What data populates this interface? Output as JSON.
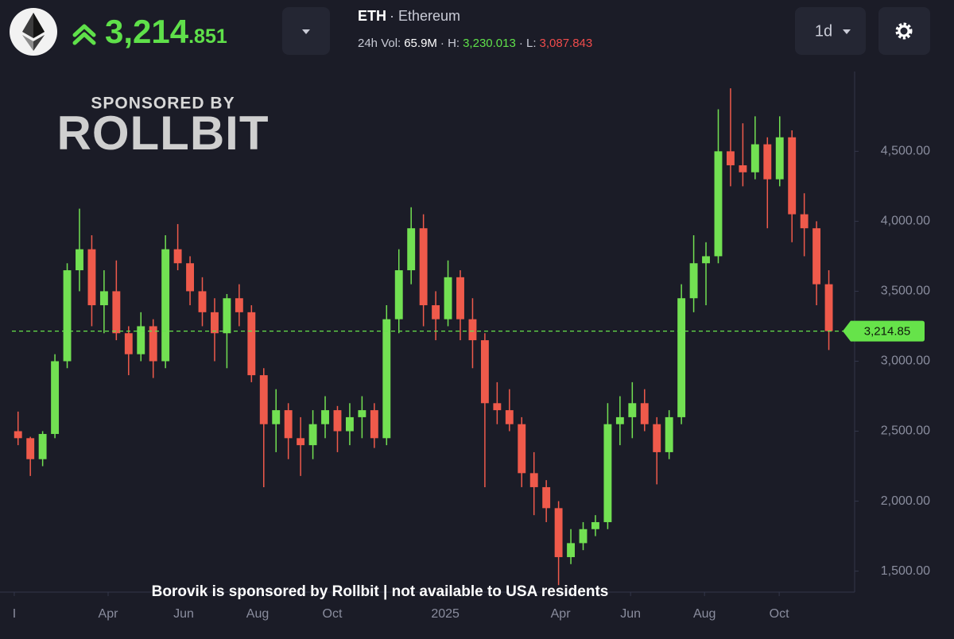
{
  "header": {
    "symbol": "ETH",
    "name": "· Ethereum",
    "price_main": "3,214",
    "price_decimals": ".851",
    "vol_label": "24h Vol:",
    "vol": "65.9M",
    "high_label": "· H:",
    "high": "3,230.013",
    "low_label": "· L:",
    "low": "3,087.843",
    "interval": "1d"
  },
  "sponsor": {
    "label": "SPONSORED BY",
    "brand": "ROLLBIT"
  },
  "footer": "Borovik is sponsored by Rollbit | not available to USA residents",
  "chart_data": {
    "type": "candlestick",
    "up_color": "#72e052",
    "down_color": "#ef5a4b",
    "open": [
      2500,
      2450,
      2300,
      2480,
      3000,
      3650,
      3800,
      3400,
      3500,
      3200,
      3050,
      3250,
      3000,
      3800,
      3700,
      3500,
      3350,
      3200,
      3450,
      3350,
      2900,
      2550,
      2650,
      2450,
      2400,
      2550,
      2650,
      2500,
      2600,
      2650,
      2450,
      3300,
      3650,
      3950,
      3400,
      3300,
      3600,
      3300,
      3150,
      2700,
      2650,
      2550,
      2200,
      2100,
      1950,
      1600,
      1700,
      1800,
      1850,
      2550,
      2600,
      2700,
      2550,
      2350,
      2600,
      3450,
      3700,
      3750,
      4500,
      4400,
      4350,
      4550,
      4300,
      4600,
      4050,
      3950,
      3550
    ],
    "high": [
      2640,
      2460,
      2500,
      3050,
      3700,
      4090,
      3900,
      3650,
      3720,
      3250,
      3350,
      3300,
      3900,
      3980,
      3750,
      3600,
      3450,
      3480,
      3550,
      3400,
      2950,
      2800,
      2700,
      2600,
      2650,
      2750,
      2680,
      2700,
      2750,
      2700,
      3400,
      3800,
      4100,
      4050,
      3500,
      3720,
      3650,
      3450,
      3200,
      2850,
      2800,
      2600,
      2350,
      2150,
      2000,
      1800,
      1850,
      1900,
      2700,
      2750,
      2850,
      2800,
      2600,
      2650,
      3550,
      3900,
      3850,
      4800,
      4950,
      4700,
      4750,
      4600,
      4750,
      4650,
      4200,
      4000,
      3650
    ],
    "low": [
      2400,
      2180,
      2250,
      2450,
      2950,
      3500,
      3250,
      3200,
      3150,
      2900,
      3000,
      2880,
      2950,
      3650,
      3400,
      3250,
      3000,
      2950,
      3250,
      2850,
      2100,
      2350,
      2300,
      2180,
      2300,
      2450,
      2350,
      2400,
      2450,
      2380,
      2400,
      3200,
      3550,
      3250,
      3150,
      3250,
      3150,
      2950,
      2100,
      2550,
      2500,
      2100,
      1900,
      1850,
      1400,
      1550,
      1650,
      1750,
      1800,
      2400,
      2450,
      2500,
      2120,
      2300,
      2550,
      3350,
      3400,
      3700,
      4250,
      4250,
      4300,
      3950,
      4250,
      3850,
      3750,
      3400,
      3080
    ],
    "close": [
      2450,
      2300,
      2480,
      3000,
      3650,
      3800,
      3400,
      3500,
      3200,
      3050,
      3250,
      3000,
      3800,
      3700,
      3500,
      3350,
      3200,
      3450,
      3350,
      2900,
      2550,
      2650,
      2450,
      2400,
      2550,
      2650,
      2500,
      2600,
      2650,
      2450,
      3300,
      3650,
      3950,
      3400,
      3300,
      3600,
      3300,
      3150,
      2700,
      2650,
      2550,
      2200,
      2100,
      1950,
      1600,
      1700,
      1800,
      1850,
      2550,
      2600,
      2700,
      2550,
      2350,
      2600,
      3450,
      3700,
      3750,
      4500,
      4400,
      4350,
      4550,
      4300,
      4600,
      4050,
      3950,
      3550,
      3215
    ],
    "last_price": 3214.85,
    "last_price_label": "3,214.85",
    "last_price_color": "#66e34a",
    "xlim": [
      -0.5,
      68.1
    ],
    "xticks": [
      {
        "value": -0.31,
        "label": "I"
      },
      {
        "value": 7.33,
        "label": "Apr"
      },
      {
        "value": 13.48,
        "label": "Jun"
      },
      {
        "value": 19.5,
        "label": "Aug"
      },
      {
        "value": 25.58,
        "label": "Oct"
      },
      {
        "value": 34.78,
        "label": "2025"
      },
      {
        "value": 44.16,
        "label": "Apr"
      },
      {
        "value": 49.86,
        "label": "Jun"
      },
      {
        "value": 55.88,
        "label": "Aug"
      },
      {
        "value": 61.96,
        "label": "Oct"
      }
    ],
    "ylim": [
      1350,
      5070
    ],
    "yticks": [
      {
        "value": 1500,
        "label": "1,500.00"
      },
      {
        "value": 2000,
        "label": "2,000.00"
      },
      {
        "value": 2500,
        "label": "2,500.00"
      },
      {
        "value": 3000,
        "label": "3,000.00"
      },
      {
        "value": 3500,
        "label": "3,500.00"
      },
      {
        "value": 4000,
        "label": "4,000.00"
      },
      {
        "value": 4500,
        "label": "4,500.00"
      }
    ],
    "grid": false
  }
}
